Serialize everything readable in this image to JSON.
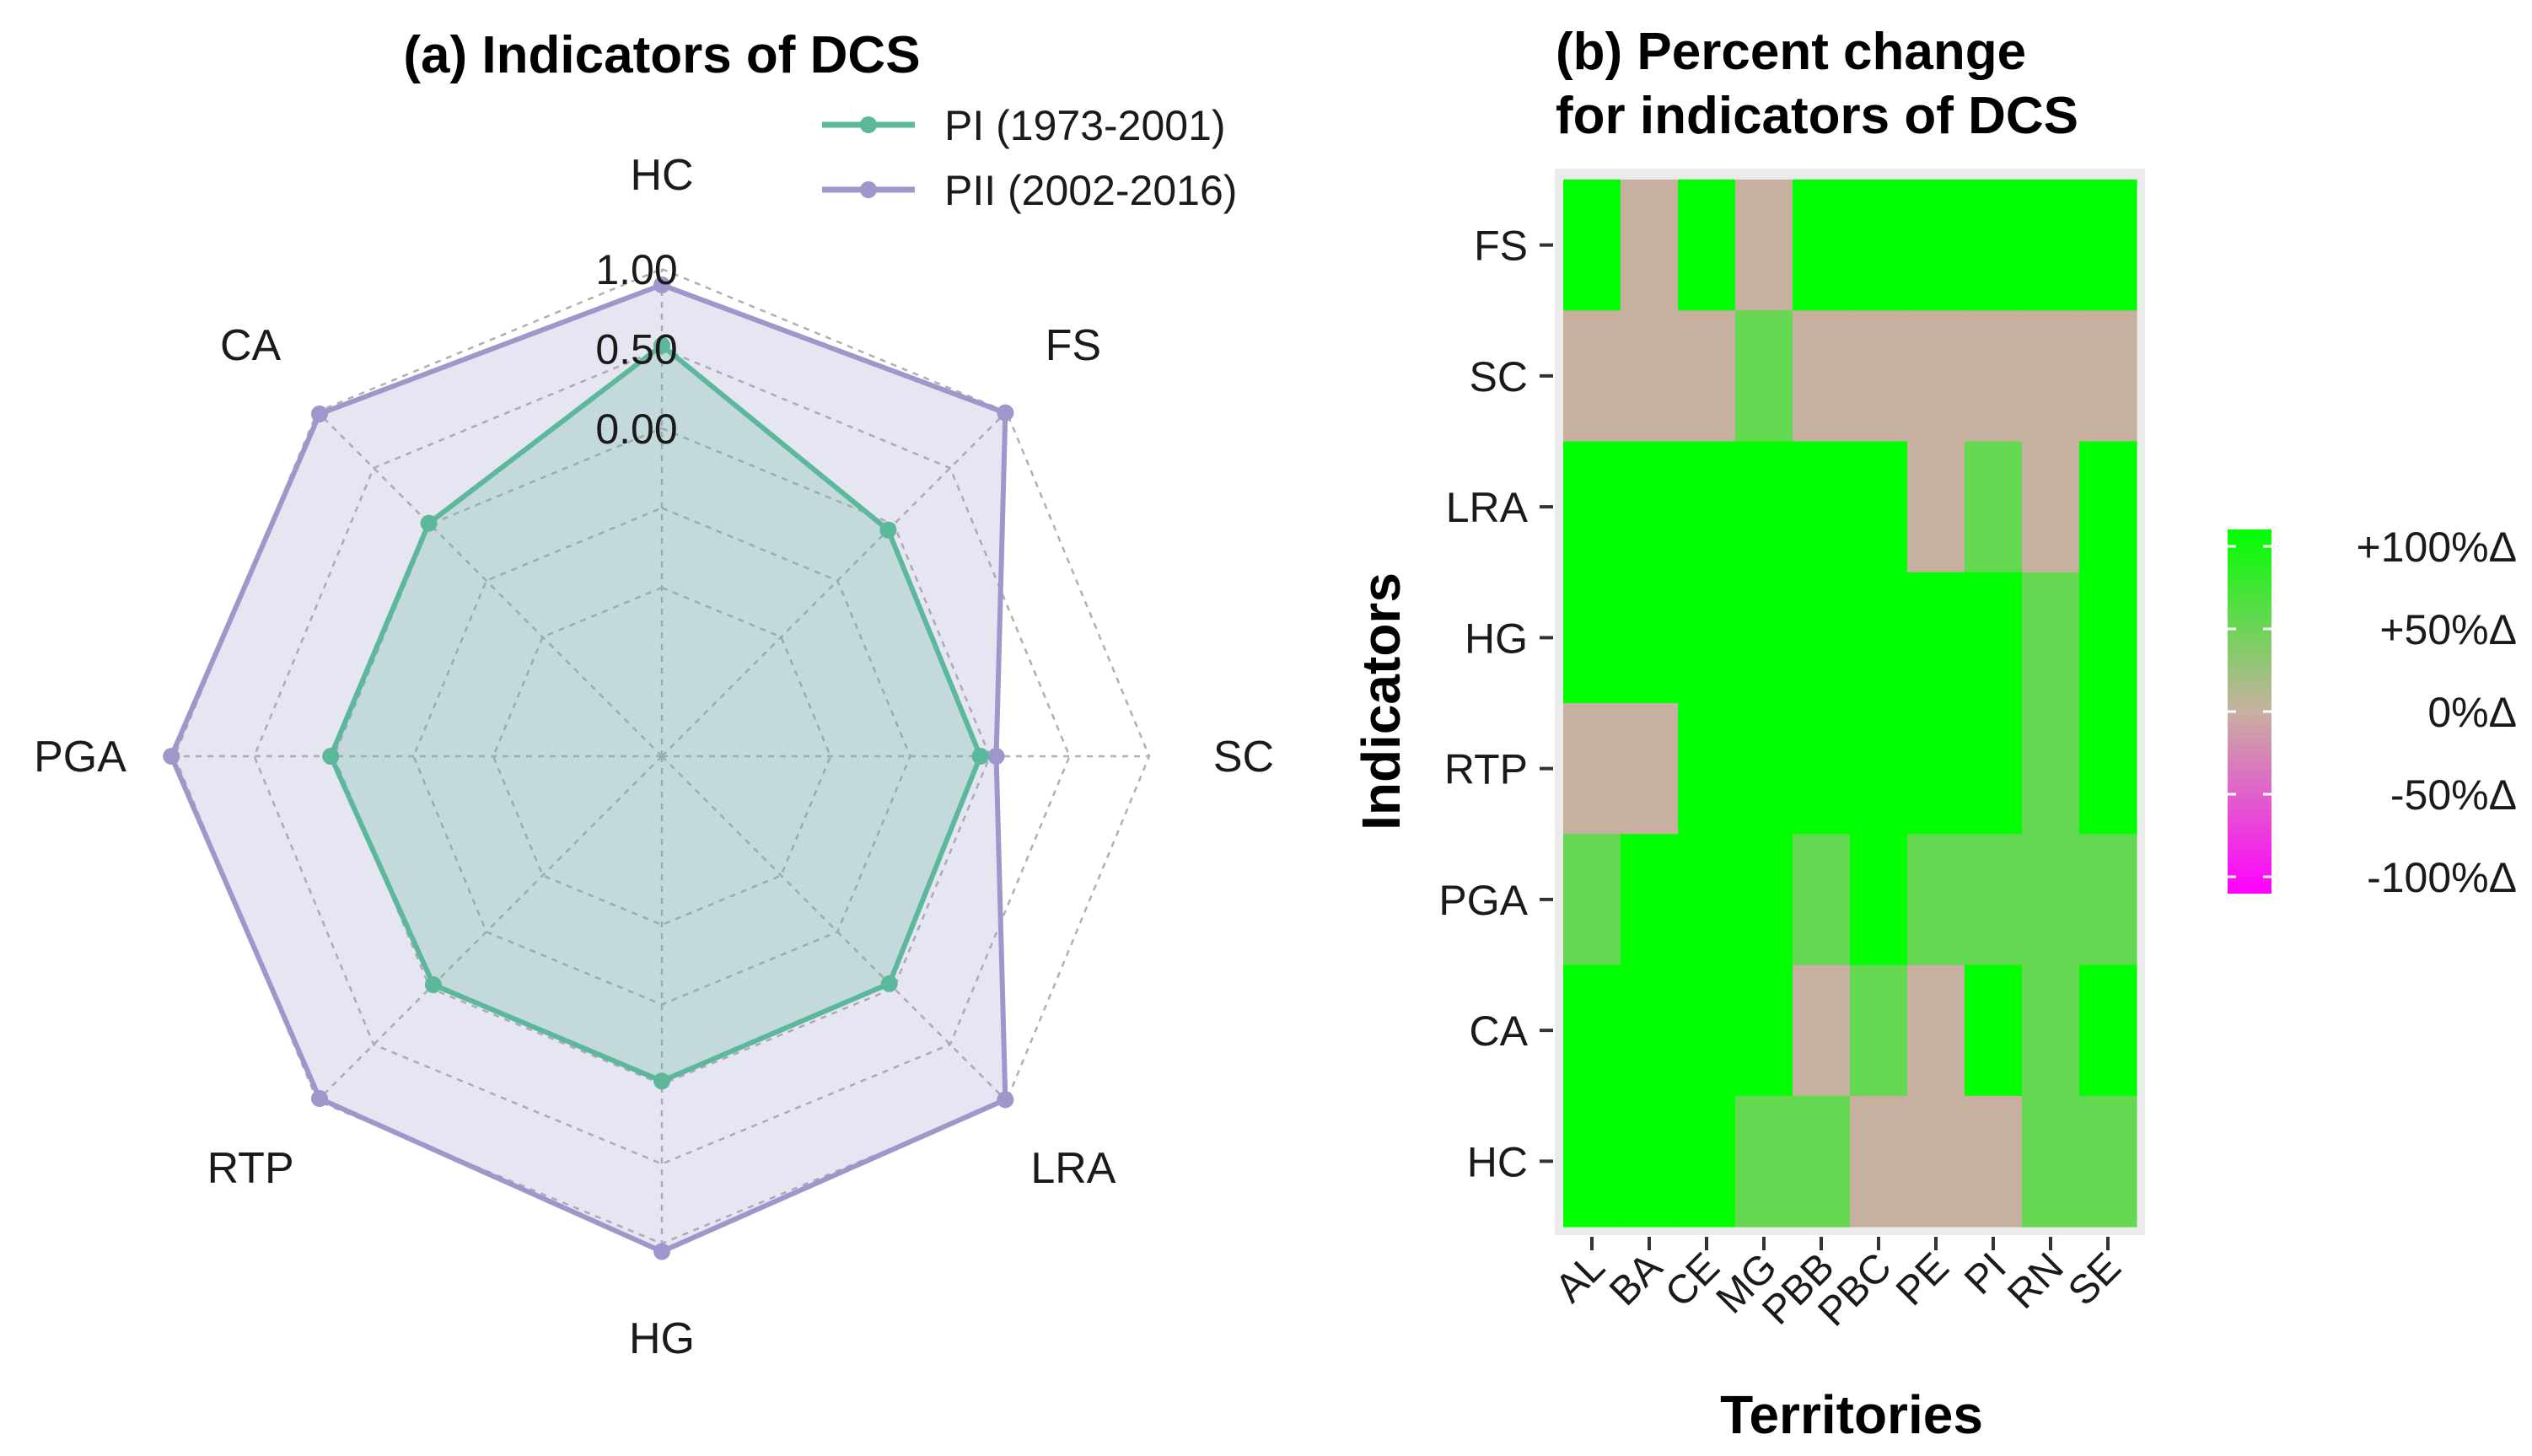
{
  "chart_data": [
    {
      "type": "radar",
      "title": "(a) Indicators of DCS",
      "axes": [
        "HC",
        "FS",
        "SC",
        "LRA",
        "HG",
        "RTP",
        "PGA",
        "CA"
      ],
      "rlim": [
        -1.0,
        1.0
      ],
      "ticks": [
        {
          "value": 1.0,
          "label": "1.00"
        },
        {
          "value": 0.5,
          "label": "0.50"
        },
        {
          "value": 0.0,
          "label": "0.00"
        }
      ],
      "grid_levels": [
        -1.0,
        -0.5,
        0.0,
        0.5,
        1.0
      ],
      "series": [
        {
          "name": "PI (1973-2001)",
          "color": "#5cb89a",
          "values": [
            0.52,
            -0.05,
            -0.06,
            -0.04,
            -0.02,
            -0.03,
            0.02,
            0.01
          ]
        },
        {
          "name": "PII (2002-2016)",
          "color": "#9d97cc",
          "values": [
            0.9,
            0.99,
            0.04,
            0.99,
            1.05,
            0.98,
            1.02,
            0.98
          ]
        }
      ],
      "legend_position": "top-right"
    },
    {
      "type": "heatmap",
      "title": [
        "(b) Percent change",
        "for indicators of DCS"
      ],
      "xlabel": "Territories",
      "ylabel": "Indicators",
      "x": [
        "AL",
        "BA",
        "CE",
        "MG",
        "PBB",
        "PBC",
        "PE",
        "PI",
        "RN",
        "SE"
      ],
      "y": [
        "FS",
        "SC",
        "LRA",
        "HG",
        "RTP",
        "PGA",
        "CA",
        "HC"
      ],
      "values": [
        [
          100,
          0,
          100,
          0,
          100,
          100,
          100,
          100,
          100,
          100
        ],
        [
          0,
          0,
          0,
          50,
          0,
          0,
          0,
          0,
          0,
          0
        ],
        [
          100,
          100,
          100,
          100,
          100,
          100,
          0,
          50,
          0,
          100
        ],
        [
          100,
          100,
          100,
          100,
          100,
          100,
          100,
          100,
          50,
          100
        ],
        [
          0,
          0,
          100,
          100,
          100,
          100,
          100,
          100,
          50,
          100
        ],
        [
          50,
          100,
          100,
          100,
          50,
          100,
          50,
          50,
          50,
          50
        ],
        [
          100,
          100,
          100,
          100,
          0,
          50,
          0,
          100,
          50,
          100
        ],
        [
          100,
          100,
          100,
          50,
          50,
          0,
          0,
          0,
          50,
          50
        ]
      ],
      "colorbar": {
        "labels": [
          "+100%Δ",
          "+50%Δ",
          "0%Δ",
          "-50%Δ",
          "-100%Δ"
        ],
        "range": [
          -100,
          100
        ],
        "colors": {
          "high": "#00ff00",
          "mid": "#c8b0a0",
          "low": "#ff00ff"
        }
      }
    }
  ]
}
